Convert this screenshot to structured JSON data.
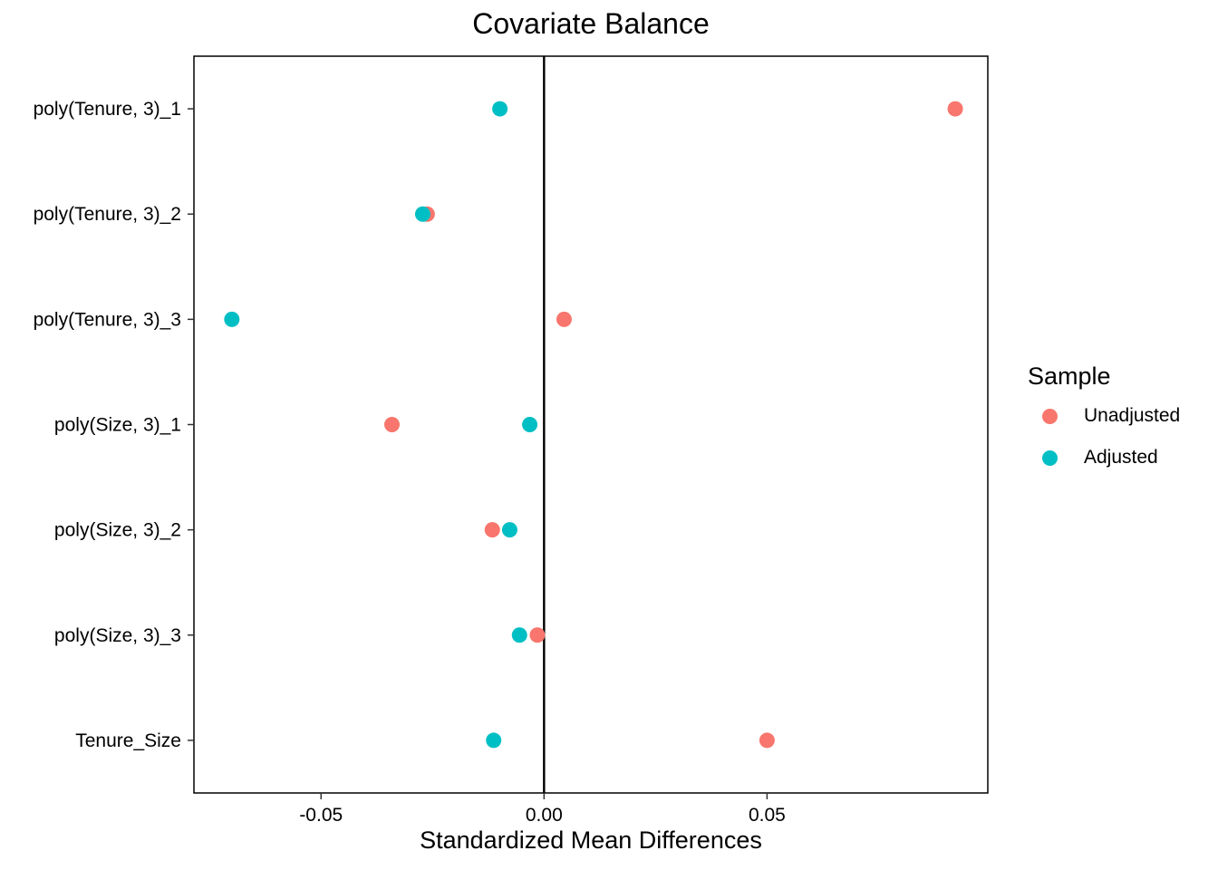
{
  "chart_data": {
    "type": "scatter",
    "title": "Covariate Balance",
    "xlabel": "Standardized Mean Differences",
    "ylabel": "",
    "xlim": [
      -0.0785,
      0.0995
    ],
    "xticks": [
      -0.05,
      0.0,
      0.05
    ],
    "xtick_labels": [
      "-0.05",
      "0.00",
      "0.05"
    ],
    "reference_line_x": 0,
    "categories": [
      "poly(Tenure, 3)_1",
      "poly(Tenure, 3)_2",
      "poly(Tenure, 3)_3",
      "poly(Size, 3)_1",
      "poly(Size, 3)_2",
      "poly(Size, 3)_3",
      "Tenure_Size"
    ],
    "legend_title": "Sample",
    "legend_position": "right",
    "series": [
      {
        "name": "Unadjusted",
        "color": "#F8766D",
        "values": [
          0.0922,
          -0.0262,
          0.0045,
          -0.0341,
          -0.0116,
          -0.0015,
          0.05
        ]
      },
      {
        "name": "Adjusted",
        "color": "#00BFC4",
        "values": [
          -0.0099,
          -0.0272,
          -0.07,
          -0.0032,
          -0.0077,
          -0.0055,
          -0.0113
        ]
      }
    ]
  }
}
